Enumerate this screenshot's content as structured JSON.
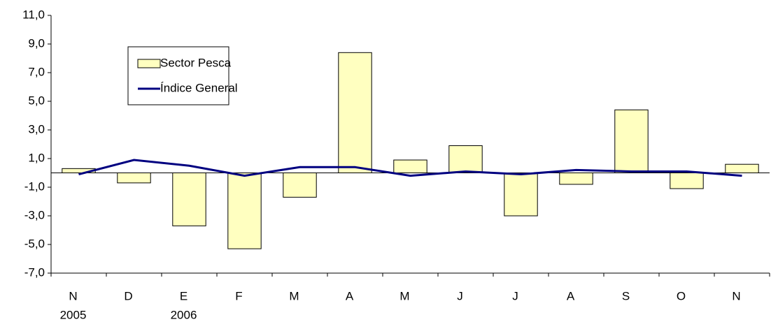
{
  "chart_data": {
    "type": "bar",
    "categories": [
      "N",
      "D",
      "E",
      "F",
      "M",
      "A",
      "M",
      "J",
      "J",
      "A",
      "S",
      "O",
      "N"
    ],
    "category_years": [
      "2005",
      null,
      "2006",
      null,
      null,
      null,
      null,
      null,
      null,
      null,
      null,
      null,
      null
    ],
    "series": [
      {
        "name": "Sector Pesca",
        "type": "bar",
        "color": "#ffffc0",
        "values": [
          0.3,
          -0.7,
          -3.7,
          -5.3,
          -1.7,
          8.4,
          0.9,
          1.9,
          -3.0,
          -0.8,
          4.4,
          -1.1,
          0.6
        ]
      },
      {
        "name": "Índice General",
        "type": "line",
        "color": "#000080",
        "values": [
          -0.1,
          0.9,
          0.5,
          -0.2,
          0.4,
          0.4,
          -0.2,
          0.1,
          -0.1,
          0.2,
          0.1,
          0.1,
          -0.2
        ]
      }
    ],
    "ylim": [
      -7,
      11
    ],
    "yticks": [
      {
        "value": -7,
        "label": "-7,0"
      },
      {
        "value": -5,
        "label": "-5,0"
      },
      {
        "value": -3,
        "label": "-3,0"
      },
      {
        "value": -1,
        "label": "-1,0"
      },
      {
        "value": 1,
        "label": "1,0"
      },
      {
        "value": 3,
        "label": "3,0"
      },
      {
        "value": 5,
        "label": "5,0"
      },
      {
        "value": 7,
        "label": "7,0"
      },
      {
        "value": 9,
        "label": "9,0"
      },
      {
        "value": 11,
        "label": "11,0"
      }
    ],
    "legend": "upper left"
  }
}
